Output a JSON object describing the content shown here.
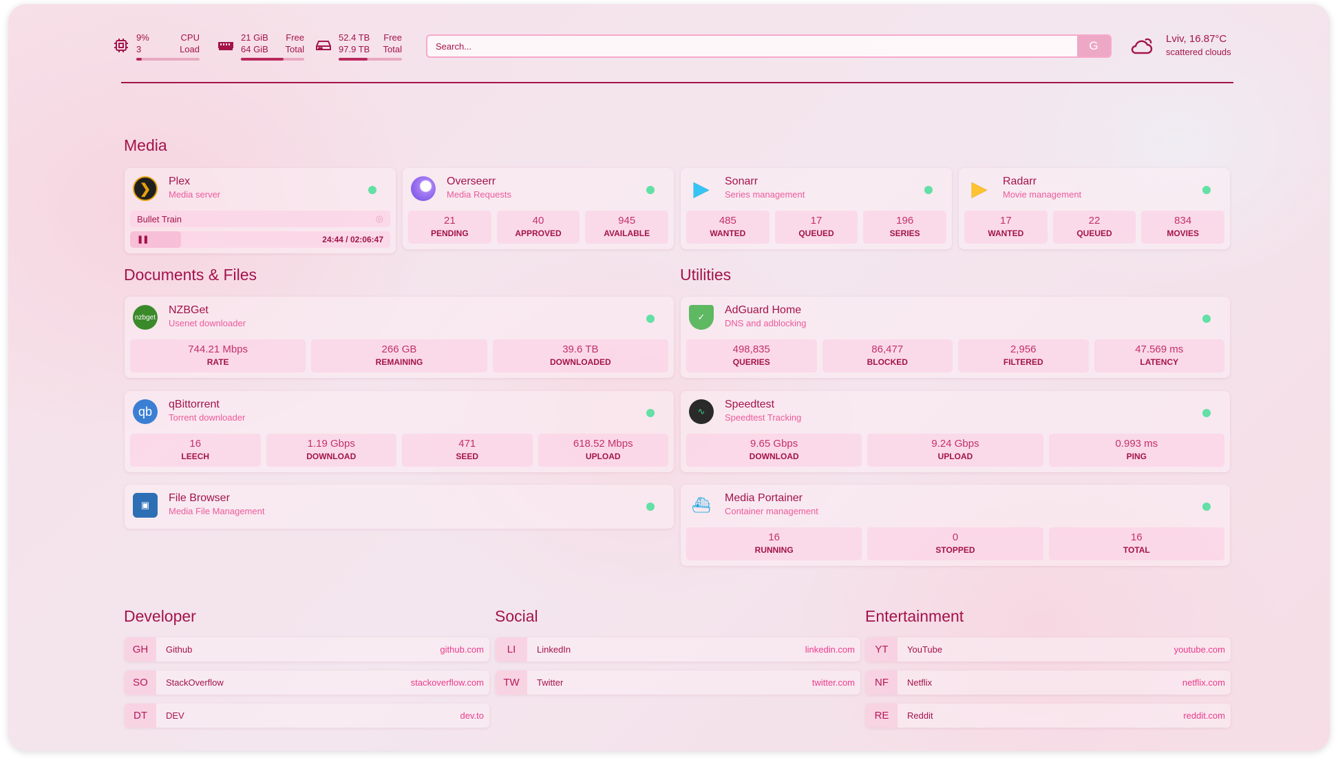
{
  "header": {
    "cpu": {
      "icon": "cpu-icon",
      "value": "9%",
      "value2": "3",
      "label": "CPU",
      "label2": "Load",
      "percent": 9
    },
    "memory": {
      "icon": "memory-icon",
      "value": "21 GiB",
      "value2": "64 GiB",
      "label": "Free",
      "label2": "Total",
      "percent": 67
    },
    "disk": {
      "icon": "disk-icon",
      "value": "52.4 TB",
      "value2": "97.9 TB",
      "label": "Free",
      "label2": "Total",
      "percent": 46
    },
    "search": {
      "placeholder": "Search...",
      "engine_label": "G"
    },
    "weather": {
      "icon": "cloud-icon",
      "location_temp": "Lviv, 16.87°C",
      "condition": "scattered clouds"
    }
  },
  "colors": {
    "accent": "#a3134a",
    "status_up": "#63e0a6",
    "subtitle": "#ec5a9d"
  },
  "media": {
    "title": "Media",
    "plex": {
      "name": "Plex",
      "description": "Media server",
      "icon": "plex-icon",
      "now_playing": "Bullet Train",
      "time": "24:44 / 02:06:47",
      "progress": 19.5
    },
    "cards": [
      {
        "name": "Overseerr",
        "description": "Media Requests",
        "icon": "overseerr-icon",
        "stats": [
          {
            "value": "21",
            "label": "PENDING"
          },
          {
            "value": "40",
            "label": "APPROVED"
          },
          {
            "value": "945",
            "label": "AVAILABLE"
          }
        ]
      },
      {
        "name": "Sonarr",
        "description": "Series management",
        "icon": "sonarr-icon",
        "stats": [
          {
            "value": "485",
            "label": "WANTED"
          },
          {
            "value": "17",
            "label": "QUEUED"
          },
          {
            "value": "196",
            "label": "SERIES"
          }
        ]
      },
      {
        "name": "Radarr",
        "description": "Movie management",
        "icon": "radarr-icon",
        "stats": [
          {
            "value": "17",
            "label": "WANTED"
          },
          {
            "value": "22",
            "label": "QUEUED"
          },
          {
            "value": "834",
            "label": "MOVIES"
          }
        ]
      }
    ]
  },
  "documents": {
    "title": "Documents & Files",
    "cards": [
      {
        "name": "NZBGet",
        "description": "Usenet downloader",
        "icon": "nzbget-icon",
        "stats": [
          {
            "value": "744.21 Mbps",
            "label": "RATE"
          },
          {
            "value": "266 GB",
            "label": "REMAINING"
          },
          {
            "value": "39.6 TB",
            "label": "DOWNLOADED"
          }
        ]
      },
      {
        "name": "qBittorrent",
        "description": "Torrent downloader",
        "icon": "qbittorrent-icon",
        "stats": [
          {
            "value": "16",
            "label": "LEECH"
          },
          {
            "value": "1.19 Gbps",
            "label": "DOWNLOAD"
          },
          {
            "value": "471",
            "label": "SEED"
          },
          {
            "value": "618.52 Mbps",
            "label": "UPLOAD"
          }
        ]
      },
      {
        "name": "File Browser",
        "description": "Media File Management",
        "icon": "filebrowser-icon",
        "stats": []
      }
    ]
  },
  "utilities": {
    "title": "Utilities",
    "cards": [
      {
        "name": "AdGuard Home",
        "description": "DNS and adblocking",
        "icon": "adguard-icon",
        "stats": [
          {
            "value": "498,835",
            "label": "QUERIES"
          },
          {
            "value": "86,477",
            "label": "BLOCKED"
          },
          {
            "value": "2,956",
            "label": "FILTERED"
          },
          {
            "value": "47.569 ms",
            "label": "LATENCY"
          }
        ]
      },
      {
        "name": "Speedtest",
        "description": "Speedtest Tracking",
        "icon": "speedtest-icon",
        "stats": [
          {
            "value": "9.65 Gbps",
            "label": "DOWNLOAD"
          },
          {
            "value": "9.24 Gbps",
            "label": "UPLOAD"
          },
          {
            "value": "0.993 ms",
            "label": "PING"
          }
        ]
      },
      {
        "name": "Media Portainer",
        "description": "Container management",
        "icon": "portainer-icon",
        "stats": [
          {
            "value": "16",
            "label": "RUNNING"
          },
          {
            "value": "0",
            "label": "STOPPED"
          },
          {
            "value": "16",
            "label": "TOTAL"
          }
        ]
      }
    ]
  },
  "bookmarks": [
    {
      "title": "Developer",
      "items": [
        {
          "abbr": "GH",
          "name": "Github",
          "url": "github.com"
        },
        {
          "abbr": "SO",
          "name": "StackOverflow",
          "url": "stackoverflow.com"
        },
        {
          "abbr": "DT",
          "name": "DEV",
          "url": "dev.to"
        }
      ]
    },
    {
      "title": "Social",
      "items": [
        {
          "abbr": "LI",
          "name": "LinkedIn",
          "url": "linkedin.com"
        },
        {
          "abbr": "TW",
          "name": "Twitter",
          "url": "twitter.com"
        }
      ]
    },
    {
      "title": "Entertainment",
      "items": [
        {
          "abbr": "YT",
          "name": "YouTube",
          "url": "youtube.com"
        },
        {
          "abbr": "NF",
          "name": "Netflix",
          "url": "netflix.com"
        },
        {
          "abbr": "RE",
          "name": "Reddit",
          "url": "reddit.com"
        }
      ]
    }
  ]
}
